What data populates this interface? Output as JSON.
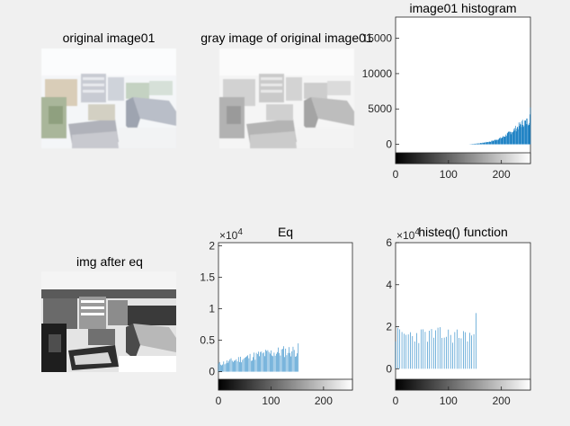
{
  "figure": {
    "image_panels": [
      {
        "id": "original",
        "title": "original image01",
        "style": "washed-out color photo of city rooftops and buildings"
      },
      {
        "id": "gray",
        "title": "gray image of original image01",
        "style": "low-contrast grayscale version"
      },
      {
        "id": "equalized",
        "title": "img after eq",
        "style": "high-contrast black-and-white equalized image"
      }
    ]
  },
  "chart_data": [
    {
      "type": "bar",
      "title": "image01 histogram",
      "xlim": [
        0,
        255
      ],
      "ylim": [
        -1200,
        18000
      ],
      "yticks": [
        "0",
        "5000",
        "10000",
        "15000"
      ],
      "xticks": [
        "0",
        "100",
        "200"
      ],
      "colorbar": "grayscale 0-255",
      "color": "#0072bd",
      "profile": {
        "zero_below": 138,
        "points": [
          [
            138,
            0
          ],
          [
            160,
            150
          ],
          [
            180,
            400
          ],
          [
            200,
            900
          ],
          [
            220,
            1800
          ],
          [
            240,
            3000
          ],
          [
            252,
            3300
          ],
          [
            255,
            4600
          ]
        ]
      }
    },
    {
      "type": "bar",
      "title": "Eq",
      "exponent": "×10",
      "exponent_power": "4",
      "xlim": [
        0,
        255
      ],
      "ylim": [
        -0.12,
        2.05
      ],
      "yticks": [
        "0",
        "0.5",
        "1",
        "1.5",
        "2"
      ],
      "xticks": [
        "0",
        "100",
        "200"
      ],
      "colorbar": "grayscale 0-255",
      "color": "#0072bd",
      "profile": {
        "points": [
          [
            0,
            0.12
          ],
          [
            40,
            0.2
          ],
          [
            80,
            0.27
          ],
          [
            120,
            0.32
          ],
          [
            140,
            0.33
          ]
        ],
        "max_bin": [
          152,
          0.45
        ],
        "zero_above": 153
      }
    },
    {
      "type": "bar",
      "title": "histeq() function",
      "exponent": "×10",
      "exponent_power": "4",
      "xlim": [
        0,
        255
      ],
      "ylim": [
        -0.5,
        6
      ],
      "yticks": [
        "0",
        "2",
        "4",
        "6"
      ],
      "xticks": [
        "0",
        "100",
        "200"
      ],
      "colorbar": "grayscale 0-255",
      "color": "#0072bd",
      "spikes": {
        "range": [
          0,
          153
        ],
        "step": 4,
        "typical": [
          1.2,
          2.0
        ],
        "max": [
          152,
          2.65
        ]
      }
    }
  ]
}
